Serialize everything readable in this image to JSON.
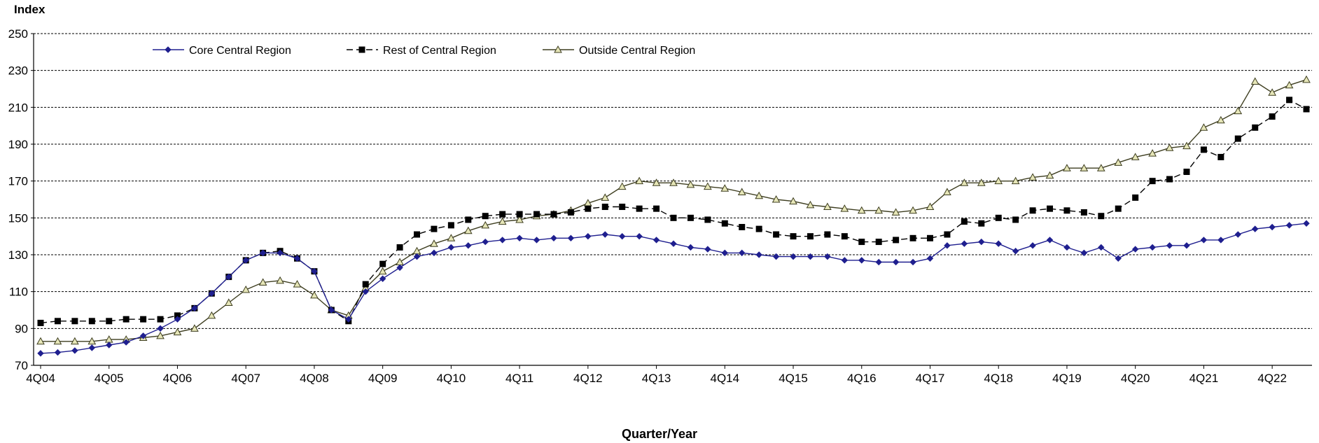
{
  "chart_data": {
    "type": "line",
    "title": "",
    "ylabel": "Index",
    "xlabel": "Quarter/Year",
    "ylim": [
      70,
      250
    ],
    "yticks": [
      70,
      90,
      110,
      130,
      150,
      170,
      190,
      210,
      230,
      250
    ],
    "grid": "horizontal dashed",
    "legend_position": "top",
    "x_tick_labels": [
      "4Q04",
      "4Q05",
      "4Q06",
      "4Q07",
      "4Q08",
      "4Q09",
      "4Q10",
      "4Q11",
      "4Q12",
      "4Q13",
      "4Q14",
      "4Q15",
      "4Q16",
      "4Q17",
      "4Q18",
      "4Q19",
      "4Q20",
      "4Q21",
      "4Q22"
    ],
    "x_tick_every": 4,
    "series": [
      {
        "name": "Core Central Region",
        "color": "#1f1f8f",
        "marker": "diamond",
        "line_style": "solid",
        "values": [
          76.5,
          77,
          78,
          79.5,
          81,
          82.5,
          86,
          90,
          95,
          101,
          109,
          118,
          127,
          131,
          131,
          128,
          121,
          100,
          95,
          110,
          117,
          123,
          129,
          131,
          134,
          135,
          137,
          138,
          139,
          138,
          139,
          139,
          140,
          141,
          140,
          140,
          138,
          136,
          134,
          133,
          131,
          131,
          130,
          129,
          129,
          129,
          129,
          127,
          127,
          126,
          126,
          126,
          128,
          135,
          136,
          137,
          136,
          132,
          135,
          138,
          134,
          131,
          134,
          128,
          133,
          134,
          135,
          135,
          138,
          138,
          141,
          144,
          145,
          146,
          147
        ]
      },
      {
        "name": "Rest of Central Region",
        "color": "#000000",
        "marker": "square",
        "line_style": "dashed",
        "values": [
          93,
          94,
          94,
          94,
          94,
          95,
          95,
          95,
          97,
          101,
          109,
          118,
          127,
          131,
          132,
          128,
          121,
          100,
          94,
          114,
          125,
          134,
          141,
          144,
          146,
          149,
          151,
          152,
          152,
          152,
          152,
          153,
          155,
          156,
          156,
          155,
          155,
          150,
          150,
          149,
          147,
          145,
          144,
          141,
          140,
          140,
          141,
          140,
          137,
          137,
          138,
          139,
          139,
          141,
          148,
          147,
          150,
          149,
          154,
          155,
          154,
          153,
          151,
          155,
          161,
          170,
          171,
          175,
          187,
          183,
          193,
          199,
          205,
          214,
          209
        ]
      },
      {
        "name": "Outside Central Region",
        "color": "#3d3d1f",
        "marker": "triangle",
        "marker_fill": "#e6e6b8",
        "line_style": "solid",
        "values": [
          83,
          83,
          83,
          83,
          84,
          84,
          85,
          86,
          88,
          90,
          97,
          104,
          111,
          115,
          116,
          114,
          108,
          100,
          97,
          112,
          121,
          126,
          132,
          136,
          139,
          143,
          146,
          148,
          149,
          151,
          152,
          154,
          158,
          161,
          167,
          170,
          169,
          169,
          168,
          167,
          166,
          164,
          162,
          160,
          159,
          157,
          156,
          155,
          154,
          154,
          153,
          154,
          156,
          164,
          169,
          169,
          170,
          170,
          172,
          173,
          177,
          177,
          177,
          180,
          183,
          185,
          188,
          189,
          199,
          203,
          208,
          224,
          218,
          222,
          225
        ]
      }
    ]
  }
}
